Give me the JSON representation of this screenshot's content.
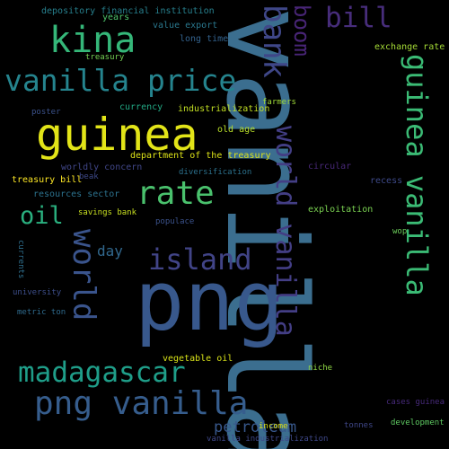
{
  "words": [
    {
      "text": "vanilla",
      "color": "#3b6e8f"
    },
    {
      "text": "png",
      "color": "#38588c"
    },
    {
      "text": "guinea",
      "color": "#e2e418"
    },
    {
      "text": "kina",
      "color": "#35b779"
    },
    {
      "text": "vanilla price",
      "color": "#25848e"
    },
    {
      "text": "rate",
      "color": "#4ac16d"
    },
    {
      "text": "oil",
      "color": "#2ab07f"
    },
    {
      "text": "bank",
      "color": "#3f4788"
    },
    {
      "text": "bill",
      "color": "#472d7b"
    },
    {
      "text": "boom",
      "color": "#482576"
    },
    {
      "text": "island",
      "color": "#414487"
    },
    {
      "text": "world",
      "color": "#3a548c"
    },
    {
      "text": "world vanilla",
      "color": "#433e85"
    },
    {
      "text": "guinea vanilla",
      "color": "#3bbb75"
    },
    {
      "text": "madagascar",
      "color": "#1f9e89"
    },
    {
      "text": "png vanilla",
      "color": "#365d8d"
    },
    {
      "text": "petroleum",
      "color": "#38588c"
    },
    {
      "text": "day",
      "color": "#31688e"
    },
    {
      "text": "depository financial institution",
      "color": "#27808e"
    },
    {
      "text": "years",
      "color": "#4ec36b"
    },
    {
      "text": "value export",
      "color": "#2a788e"
    },
    {
      "text": "long time",
      "color": "#33628d"
    },
    {
      "text": "treasury",
      "color": "#75d054"
    },
    {
      "text": "exchange rate",
      "color": "#a5db36"
    },
    {
      "text": "poster",
      "color": "#3b528b"
    },
    {
      "text": "currency",
      "color": "#22a884"
    },
    {
      "text": "industrialization",
      "color": "#c2df23"
    },
    {
      "text": "farmers",
      "color": "#a0da39"
    },
    {
      "text": "old age",
      "color": "#b8de29"
    },
    {
      "text": "department of the treasury",
      "color": "#dde318"
    },
    {
      "text": "worldly concern",
      "color": "#404688"
    },
    {
      "text": "circular",
      "color": "#482878"
    },
    {
      "text": "diversification",
      "color": "#2c728e"
    },
    {
      "text": "treasury bill",
      "color": "#fde725"
    },
    {
      "text": "beak",
      "color": "#3e4989"
    },
    {
      "text": "recess",
      "color": "#3e4a89"
    },
    {
      "text": "resources sector",
      "color": "#2c728e"
    },
    {
      "text": "savings bank",
      "color": "#c8e020"
    },
    {
      "text": "exploitation",
      "color": "#7ad151"
    },
    {
      "text": "populace",
      "color": "#3b528b"
    },
    {
      "text": "wop",
      "color": "#6ccd5a"
    },
    {
      "text": "currents",
      "color": "#2e6f8e"
    },
    {
      "text": "university",
      "color": "#3d4e8a"
    },
    {
      "text": "metric ton",
      "color": "#2f6b8e"
    },
    {
      "text": "vegetable oil",
      "color": "#d8e219"
    },
    {
      "text": "niche",
      "color": "#8fd744"
    },
    {
      "text": "income",
      "color": "#dde318"
    },
    {
      "text": "cases guinea",
      "color": "#472a7a"
    },
    {
      "text": "tonnes",
      "color": "#3f4788"
    },
    {
      "text": "development",
      "color": "#5ec962"
    },
    {
      "text": "vanilla industrialization",
      "color": "#3f4889"
    }
  ]
}
